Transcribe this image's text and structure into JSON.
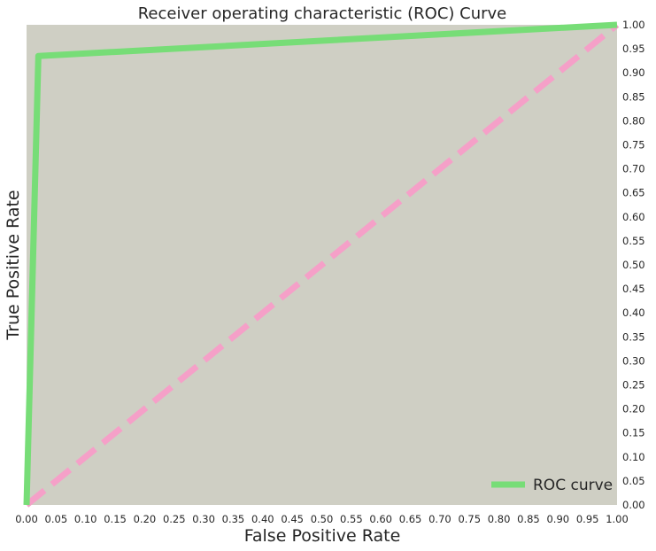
{
  "chart_data": {
    "type": "line",
    "title": "Receiver operating characteristic (ROC) Curve",
    "xlabel": "False Positive Rate",
    "ylabel": "True Positive Rate",
    "xlim": [
      0.0,
      1.0
    ],
    "ylim": [
      0.0,
      1.0
    ],
    "x_ticks": [
      "0.00",
      "0.05",
      "0.10",
      "0.15",
      "0.20",
      "0.25",
      "0.30",
      "0.35",
      "0.40",
      "0.45",
      "0.50",
      "0.55",
      "0.60",
      "0.65",
      "0.70",
      "0.75",
      "0.80",
      "0.85",
      "0.90",
      "0.95",
      "1.00"
    ],
    "y_ticks": [
      "0.00",
      "0.05",
      "0.10",
      "0.15",
      "0.20",
      "0.25",
      "0.30",
      "0.35",
      "0.40",
      "0.45",
      "0.50",
      "0.55",
      "0.60",
      "0.65",
      "0.70",
      "0.75",
      "0.80",
      "0.85",
      "0.90",
      "0.95",
      "1.00"
    ],
    "y_axis_side": "right",
    "grid": false,
    "legend_position": "lower-right",
    "series": [
      {
        "name": "ROC curve",
        "x": [
          0.0,
          0.02,
          1.0
        ],
        "y": [
          0.0,
          0.935,
          1.0
        ],
        "color": "#77dd77",
        "style": "solid"
      },
      {
        "x": [
          0.0,
          1.0
        ],
        "y": [
          0.0,
          1.0
        ],
        "color": "#f5a0c8",
        "style": "dashed"
      }
    ],
    "background_color": "#cfcfc4"
  }
}
